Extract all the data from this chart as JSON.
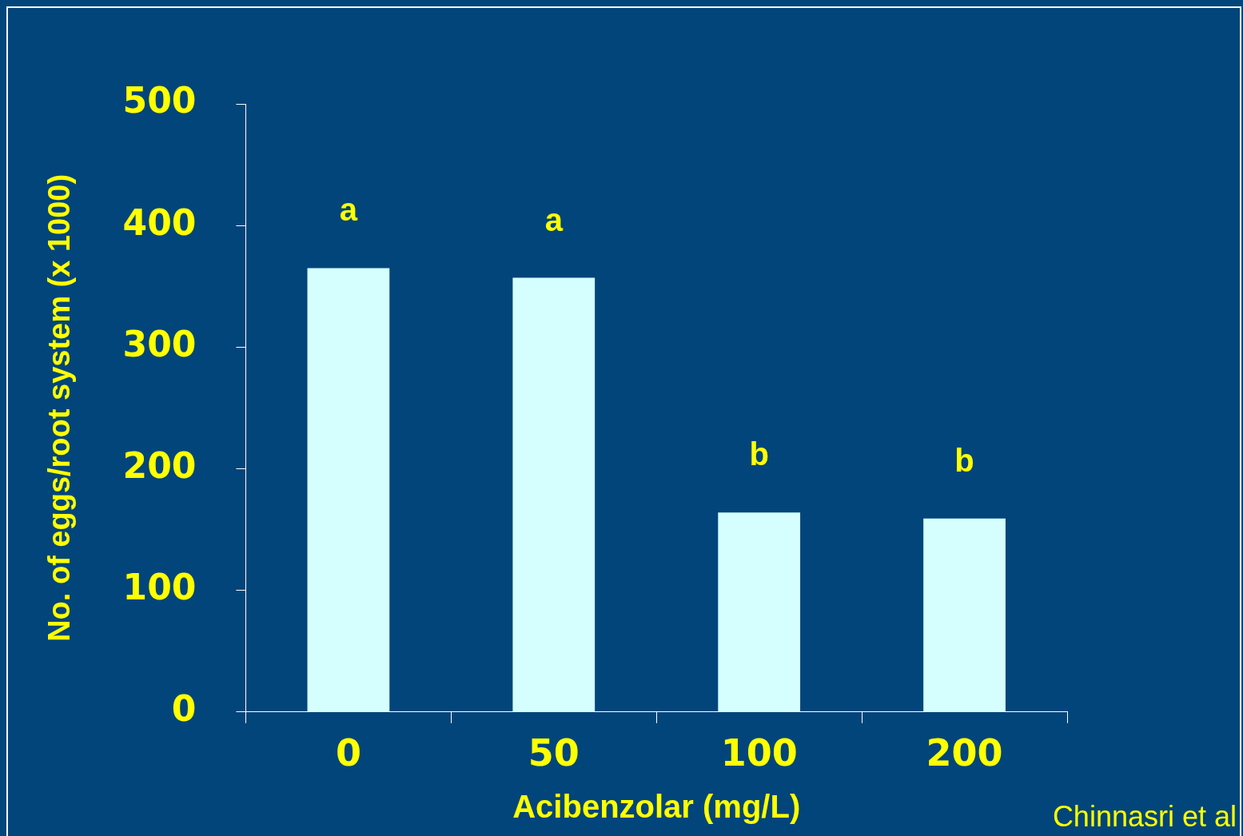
{
  "chart_data": {
    "type": "bar",
    "xlabel": "Acibenzolar (mg/L)",
    "ylabel": "No. of eggs/root system (x 1000)",
    "categories": [
      "0",
      "50",
      "100",
      "200"
    ],
    "values": [
      365,
      357,
      164,
      159
    ],
    "color": "#d5ffff",
    "ylim": [
      0,
      500
    ],
    "yticks": [
      0,
      100,
      200,
      300,
      400,
      500
    ],
    "grid": false,
    "legend": false,
    "annotations": [
      {
        "text": "a",
        "x": "0",
        "y": 365
      },
      {
        "text": "a",
        "x": "50",
        "y": 357
      },
      {
        "text": "b",
        "x": "100",
        "y": 164
      },
      {
        "text": "b",
        "x": "200",
        "y": 159
      },
      "Chinnasri et al"
    ]
  }
}
